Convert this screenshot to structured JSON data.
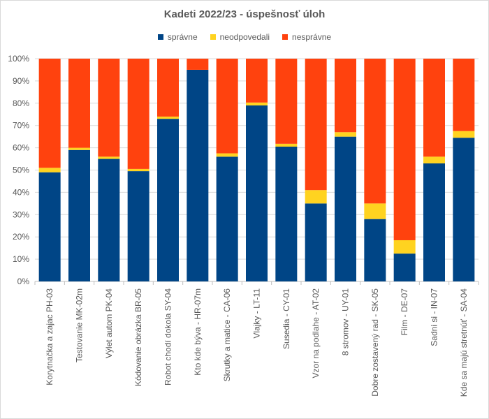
{
  "chart_data": {
    "type": "bar",
    "stacked": true,
    "title": "Kadeti 2022/23 - úspešnosť úloh",
    "xlabel": "",
    "ylabel": "",
    "ylim": [
      0,
      100
    ],
    "y_ticks": [
      "0%",
      "10%",
      "20%",
      "30%",
      "40%",
      "50%",
      "60%",
      "70%",
      "80%",
      "90%",
      "100%"
    ],
    "grid": true,
    "legend_position": "top",
    "categories": [
      "Korytnačka a zajac PH-03",
      "Testovanie MK-02m",
      "Výlet autom PK-04",
      "Kódovanie obrázka BR-05",
      "Robot chodí dokola SY-04",
      "Kto kde býva - HR-07m",
      "Skrutky a matice - CA-06",
      "Vlajky - LT-11",
      "Susedia - CY-01",
      "Vzor na podlahe - AT-02",
      "8 stromov - UY-01",
      "Dobre zostavený rad - SK-05",
      "Film - DE-07",
      "Sadni si - IN-07",
      "Kde sa majú stretnúť - SA-04"
    ],
    "series": [
      {
        "name": "správne",
        "color": "#004586",
        "values": [
          49,
          59,
          55,
          49.5,
          73,
          95,
          56,
          79,
          60.5,
          35,
          65,
          28,
          12.5,
          53,
          64.5
        ]
      },
      {
        "name": "neodpovedali",
        "color": "#ffd320",
        "values": [
          2,
          1,
          1,
          1,
          1,
          0,
          1.5,
          1.3,
          1.3,
          6,
          2,
          7,
          6,
          3,
          3
        ]
      },
      {
        "name": "nesprávne",
        "color": "#ff420e",
        "values": [
          49,
          40,
          44,
          49.5,
          26,
          5,
          42.5,
          19.7,
          38.2,
          59,
          33,
          65,
          81.5,
          44,
          32.5
        ]
      }
    ]
  }
}
